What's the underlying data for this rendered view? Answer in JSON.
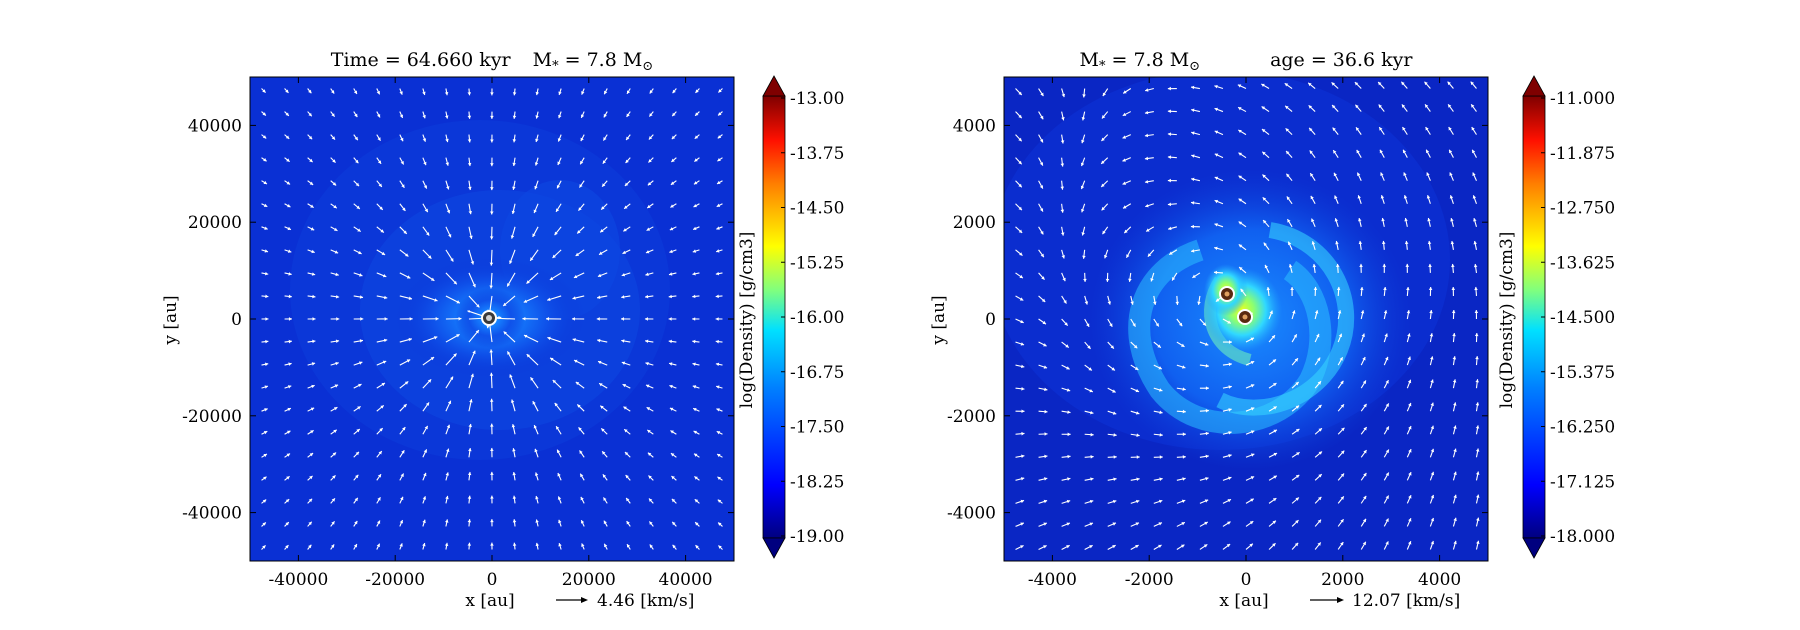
{
  "chart_data": [
    {
      "type": "heatmap",
      "title": "Time = 64.660 kyr    M$_*$ = 7.8 M$_\\odot$",
      "title_parts": {
        "time": "Time = 64.660 kyr",
        "mass": "M",
        "mass_sub": "*",
        "mass_rest": "= 7.8 M",
        "mass_unit_sub": "⊙"
      },
      "xlabel": "x [au]",
      "ylabel": "y [au]",
      "xlim": [
        -50000,
        50000
      ],
      "ylim": [
        -50000,
        50000
      ],
      "xticks": [
        -40000,
        -20000,
        0,
        20000,
        40000
      ],
      "yticks": [
        -40000,
        -20000,
        0,
        20000,
        40000
      ],
      "xtick_labels": [
        "-40000",
        "-20000",
        "0",
        "20000",
        "40000"
      ],
      "ytick_labels": [
        "-40000",
        "-20000",
        "0",
        "20000",
        "40000"
      ],
      "colorbar": {
        "label": "log(Density) [g/cm3]",
        "range": [
          -19.0,
          -13.0
        ],
        "tick_labels": [
          "-13.00",
          "-13.75",
          "-14.50",
          "-15.25",
          "-16.00",
          "-16.75",
          "-17.50",
          "-18.25",
          "-19.00"
        ]
      },
      "quiver_key": {
        "value": 4.46,
        "label": "4.46 [km/s]"
      },
      "sinks": [
        {
          "x": -500,
          "y": 0
        }
      ],
      "colors": {
        "background": "#0a30d6",
        "core": "#1fa0ff"
      }
    },
    {
      "type": "heatmap",
      "title_parts": {
        "mass": "M",
        "mass_sub": "*",
        "mass_rest": "= 7.8 M",
        "mass_unit_sub": "⊙",
        "age": "age = 36.6 kyr"
      },
      "xlabel": "x [au]",
      "ylabel": "y [au]",
      "xlim": [
        -5000,
        5000
      ],
      "ylim": [
        -5000,
        5000
      ],
      "xticks": [
        -4000,
        -2000,
        0,
        2000,
        4000
      ],
      "yticks": [
        -4000,
        -2000,
        0,
        2000,
        4000
      ],
      "xtick_labels": [
        "-4000",
        "-2000",
        "0",
        "2000",
        "4000"
      ],
      "ytick_labels": [
        "-4000",
        "-2000",
        "0",
        "2000",
        "4000"
      ],
      "colorbar": {
        "label": "log(Density) [g/cm3]",
        "range": [
          -18.0,
          -11.0
        ],
        "tick_labels": [
          "-11.000",
          "-11.875",
          "-12.750",
          "-13.625",
          "-14.500",
          "-15.375",
          "-16.250",
          "-17.125",
          "-18.000"
        ]
      },
      "quiver_key": {
        "value": 12.07,
        "label": "12.07 [km/s]"
      },
      "sinks": [
        {
          "x": -350,
          "y": 450
        },
        {
          "x": 0,
          "y": 0
        }
      ],
      "colors": {
        "background": "#0a28c8",
        "arm": "#2ec8ff",
        "core": "#d8f000"
      }
    }
  ]
}
